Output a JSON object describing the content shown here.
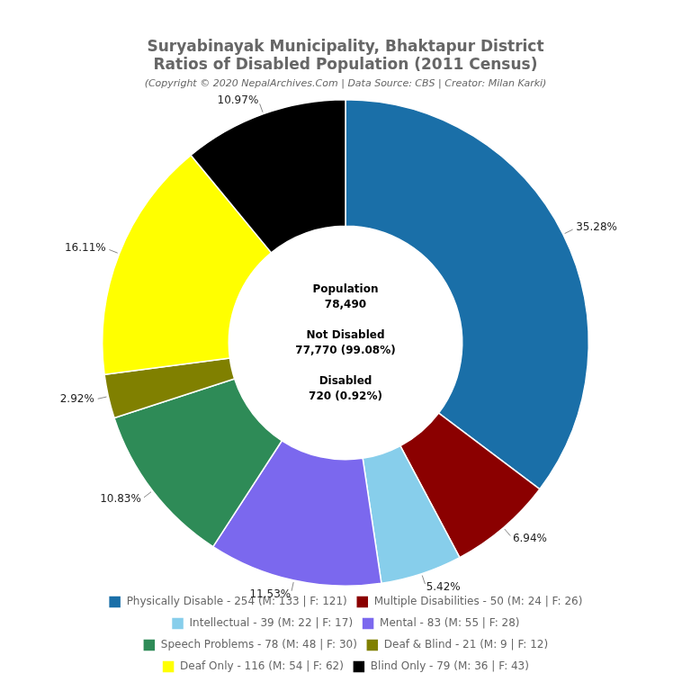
{
  "chart_data": {
    "type": "doughnut",
    "title": [
      "Suryabinayak Municipality, Bhaktapur District",
      "Ratios of Disabled Population (2011 Census)"
    ],
    "subtitle": "(Copyright © 2020 NepalArchives.Com | Data Source: CBS | Creator: Milan Karki)",
    "categories": [
      "Physically Disable - 254 (M: 133 | F: 121)",
      "Multiple Disabilities - 50 (M: 24 | F: 26)",
      "Intellectual - 39 (M: 22 | F: 17)",
      "Mental - 83 (M: 55 | F: 28)",
      "Speech Problems - 78 (M: 48 | F: 30)",
      "Deaf & Blind - 21 (M: 9 | F: 12)",
      "Deaf Only - 116 (M: 54 | F: 62)",
      "Blind Only - 79 (M: 36 | F: 43)"
    ],
    "values": [
      35.28,
      6.94,
      5.42,
      11.53,
      10.83,
      2.92,
      16.11,
      10.97
    ],
    "value_labels": [
      "35.28%",
      "6.94%",
      "5.42%",
      "11.53%",
      "10.83%",
      "2.92%",
      "16.11%",
      "10.97%"
    ],
    "colors": [
      "#1a6fa8",
      "#8b0000",
      "#87ceeb",
      "#7b68ee",
      "#2e8b57",
      "#808000",
      "#ffff00",
      "#000000"
    ],
    "data_labels": true,
    "legend": "bottom",
    "annotations": [
      "Population\n78,490",
      "Not Disabled\n77,770 (99.08%)",
      "Disabled\n720 (0.92%)"
    ]
  }
}
